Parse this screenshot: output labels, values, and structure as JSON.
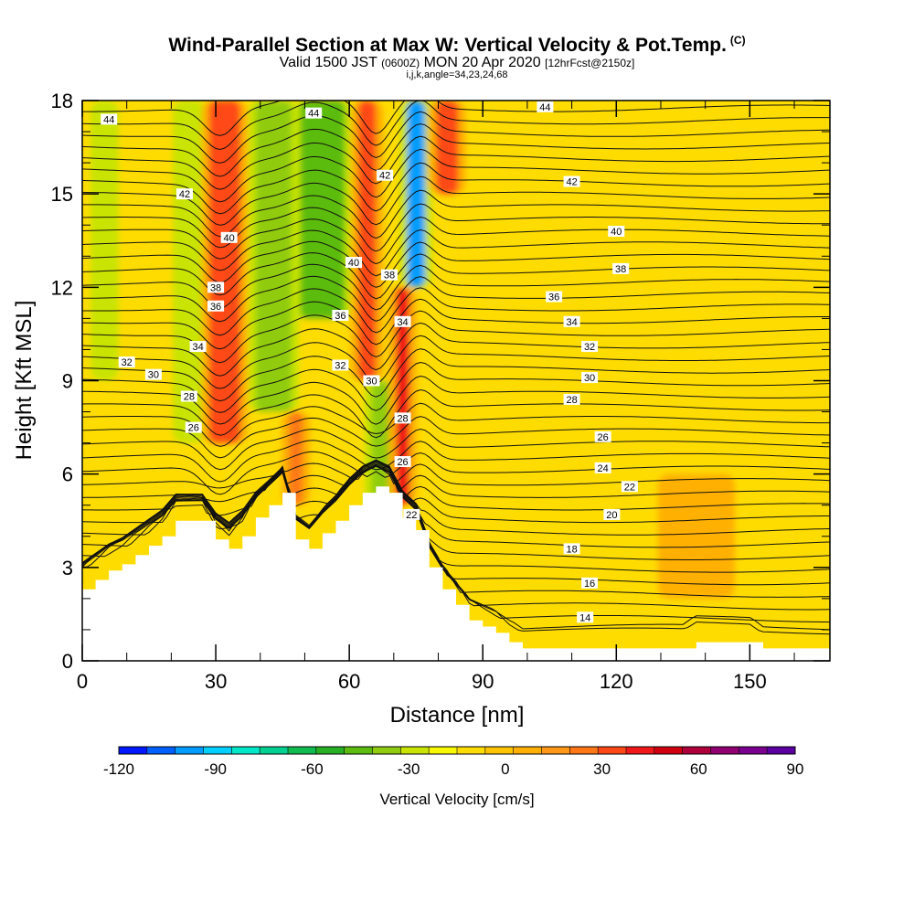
{
  "header": {
    "title": "Wind-Parallel Section at Max W: Vertical Velocity & Pot.Temp.",
    "copyright": "(C)",
    "valid_prefix": "Valid 1500 JST",
    "valid_utc": "(0600Z)",
    "valid_date": "MON 20 Apr 2020",
    "forecast": "[12hrFcst@2150z]",
    "indices": "i,j,k,angle=34,23,24,68"
  },
  "chart_data": {
    "type": "heatmap",
    "xlabel": "Distance [nm]",
    "ylabel": "Height [Kft MSL]",
    "xlim": [
      0,
      168
    ],
    "ylim": [
      0,
      18
    ],
    "xticks": [
      0,
      30,
      60,
      90,
      120,
      150
    ],
    "yticks": [
      0,
      3,
      6,
      9,
      12,
      15,
      18
    ],
    "background_value_cm_s": 5,
    "vertical_velocity_features": [
      {
        "x_center": 5,
        "width": 3,
        "z_bottom": 9,
        "z_top": 18,
        "w_cm_s": -20
      },
      {
        "x_center": 24,
        "width": 4,
        "z_bottom": 7,
        "z_top": 18,
        "w_cm_s": -15
      },
      {
        "x_center": 32,
        "width": 7,
        "z_bottom": 7,
        "z_top": 18,
        "w_cm_s": 55
      },
      {
        "x_center": 43,
        "width": 8,
        "z_bottom": 8,
        "z_top": 18,
        "w_cm_s": -25
      },
      {
        "x_center": 54,
        "width": 10,
        "z_bottom": 11,
        "z_top": 18,
        "w_cm_s": -40
      },
      {
        "x_center": 48,
        "width": 3,
        "z_bottom": 5,
        "z_top": 8,
        "w_cm_s": 40
      },
      {
        "x_center": 64,
        "width": 4,
        "z_bottom": 9,
        "z_top": 18,
        "w_cm_s": 55
      },
      {
        "x_center": 67,
        "width": 4,
        "z_bottom": 4,
        "z_top": 9,
        "w_cm_s": -25
      },
      {
        "x_center": 72,
        "width": 3,
        "z_bottom": 5,
        "z_top": 12,
        "w_cm_s": 60
      },
      {
        "x_center": 75,
        "width": 4,
        "z_bottom": 12,
        "z_top": 18,
        "w_cm_s": -95
      },
      {
        "x_center": 82,
        "width": 5,
        "z_bottom": 15,
        "z_top": 18,
        "w_cm_s": 55
      },
      {
        "x_center": 138,
        "width": 14,
        "z_bottom": 2,
        "z_top": 6,
        "w_cm_s": 22
      }
    ],
    "terrain_kft": {
      "x": [
        0,
        3,
        6,
        9,
        12,
        15,
        18,
        21,
        24,
        27,
        30,
        33,
        36,
        39,
        42,
        45,
        48,
        51,
        54,
        57,
        60,
        63,
        66,
        69,
        72,
        75,
        78,
        81,
        84,
        87,
        90,
        93,
        96,
        99,
        102,
        105,
        108,
        111,
        114,
        117,
        120,
        123,
        126,
        129,
        132,
        135,
        138,
        141,
        144,
        147,
        150,
        153,
        156,
        159,
        162,
        165,
        168
      ],
      "z": [
        2.3,
        2.6,
        2.9,
        3.1,
        3.4,
        3.7,
        4.0,
        4.5,
        4.5,
        4.5,
        3.9,
        3.6,
        4.0,
        4.6,
        5.0,
        5.4,
        3.9,
        3.6,
        4.1,
        4.5,
        5.0,
        5.4,
        5.6,
        5.4,
        4.6,
        4.2,
        3.0,
        2.3,
        1.8,
        1.3,
        1.1,
        0.9,
        0.6,
        0.4,
        0.4,
        0.4,
        0.4,
        0.4,
        0.4,
        0.4,
        0.4,
        0.4,
        0.4,
        0.4,
        0.4,
        0.4,
        0.6,
        0.6,
        0.6,
        0.6,
        0.6,
        0.4,
        0.4,
        0.4,
        0.4,
        0.4,
        0.4
      ]
    },
    "theta_contour_labels": [
      {
        "value": "44",
        "x": 6,
        "z": 17.4
      },
      {
        "value": "44",
        "x": 52,
        "z": 17.6
      },
      {
        "value": "44",
        "x": 104,
        "z": 17.8
      },
      {
        "value": "42",
        "x": 23,
        "z": 15.0
      },
      {
        "value": "42",
        "x": 68,
        "z": 15.6
      },
      {
        "value": "42",
        "x": 110,
        "z": 15.4
      },
      {
        "value": "40",
        "x": 33,
        "z": 13.6
      },
      {
        "value": "40",
        "x": 61,
        "z": 12.8
      },
      {
        "value": "40",
        "x": 120,
        "z": 13.8
      },
      {
        "value": "38",
        "x": 30,
        "z": 12.0
      },
      {
        "value": "38",
        "x": 69,
        "z": 12.4
      },
      {
        "value": "38",
        "x": 121,
        "z": 12.6
      },
      {
        "value": "36",
        "x": 30,
        "z": 11.4
      },
      {
        "value": "36",
        "x": 58,
        "z": 11.1
      },
      {
        "value": "36",
        "x": 106,
        "z": 11.7
      },
      {
        "value": "34",
        "x": 26,
        "z": 10.1
      },
      {
        "value": "34",
        "x": 72,
        "z": 10.9
      },
      {
        "value": "34",
        "x": 110,
        "z": 10.9
      },
      {
        "value": "32",
        "x": 10,
        "z": 9.6
      },
      {
        "value": "32",
        "x": 58,
        "z": 9.5
      },
      {
        "value": "32",
        "x": 114,
        "z": 10.1
      },
      {
        "value": "30",
        "x": 16,
        "z": 9.2
      },
      {
        "value": "30",
        "x": 65,
        "z": 9.0
      },
      {
        "value": "30",
        "x": 114,
        "z": 9.1
      },
      {
        "value": "28",
        "x": 24,
        "z": 8.5
      },
      {
        "value": "28",
        "x": 72,
        "z": 7.8
      },
      {
        "value": "28",
        "x": 110,
        "z": 8.4
      },
      {
        "value": "26",
        "x": 25,
        "z": 7.5
      },
      {
        "value": "26",
        "x": 72,
        "z": 6.4
      },
      {
        "value": "26",
        "x": 117,
        "z": 7.2
      },
      {
        "value": "24",
        "x": 117,
        "z": 6.2
      },
      {
        "value": "22",
        "x": 74,
        "z": 4.7
      },
      {
        "value": "22",
        "x": 123,
        "z": 5.6
      },
      {
        "value": "20",
        "x": 119,
        "z": 4.7
      },
      {
        "value": "18",
        "x": 110,
        "z": 3.6
      },
      {
        "value": "16",
        "x": 114,
        "z": 2.5
      },
      {
        "value": "14",
        "x": 113,
        "z": 1.4
      }
    ],
    "colorbar": {
      "title": "Vertical Velocity [cm/s]",
      "tick_labels": [
        "-120",
        "-90",
        "-60",
        "-30",
        "0",
        "30",
        "60",
        "90"
      ],
      "min": -120,
      "max": 90,
      "step": 10,
      "colors": [
        "#0018ff",
        "#0060ff",
        "#009cff",
        "#00d0ff",
        "#00e8c8",
        "#00d090",
        "#10bc50",
        "#28b024",
        "#5cbc10",
        "#90cc10",
        "#c8e400",
        "#f8f800",
        "#ffdc00",
        "#ffc400",
        "#ffb000",
        "#ff9818",
        "#ff7818",
        "#ff4818",
        "#f01818",
        "#d00010",
        "#b0003c",
        "#900070",
        "#7a0090",
        "#5a00a0"
      ]
    }
  }
}
